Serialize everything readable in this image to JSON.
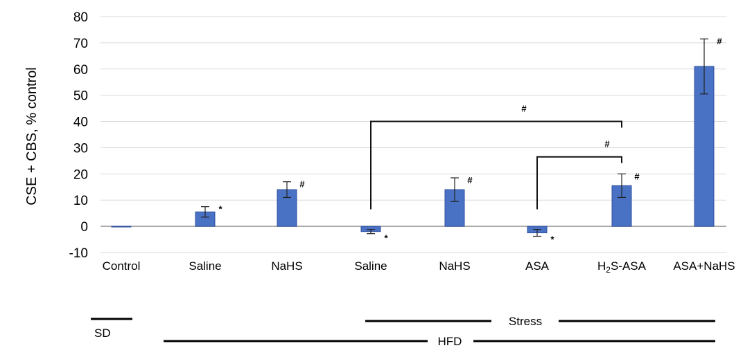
{
  "chart_data": {
    "type": "bar",
    "title": "",
    "xlabel": "",
    "ylabel": "CSE + CBS, % control",
    "ylim": [
      -10,
      80
    ],
    "yticks": [
      80,
      70,
      60,
      50,
      40,
      30,
      20,
      10,
      0,
      -10
    ],
    "grid": true,
    "categories": [
      "Control",
      "Saline",
      "NaHS",
      "Saline",
      "NaHS",
      "ASA",
      "H2S-ASA",
      "ASA+NaHS"
    ],
    "values": [
      0,
      5.5,
      14,
      -2,
      14,
      -2.5,
      15.5,
      61
    ],
    "errors": [
      0,
      2,
      3,
      0.8,
      4.5,
      1.3,
      4.5,
      10.5
    ],
    "markers": [
      "",
      "*",
      "#",
      "*",
      "#",
      "*",
      "#",
      "#"
    ],
    "bar_color": "#4a72c4",
    "comparisons": [
      {
        "from": 3,
        "to": 6,
        "y": 40,
        "label": "#"
      },
      {
        "from": 5,
        "to": 6,
        "y": 26.5,
        "label": "#"
      }
    ],
    "groups": [
      {
        "label": "SD",
        "start": 0,
        "end": 0
      },
      {
        "label": "Stress",
        "start": 3,
        "end": 7
      },
      {
        "label": "HFD",
        "start": 1,
        "end": 7
      }
    ]
  }
}
